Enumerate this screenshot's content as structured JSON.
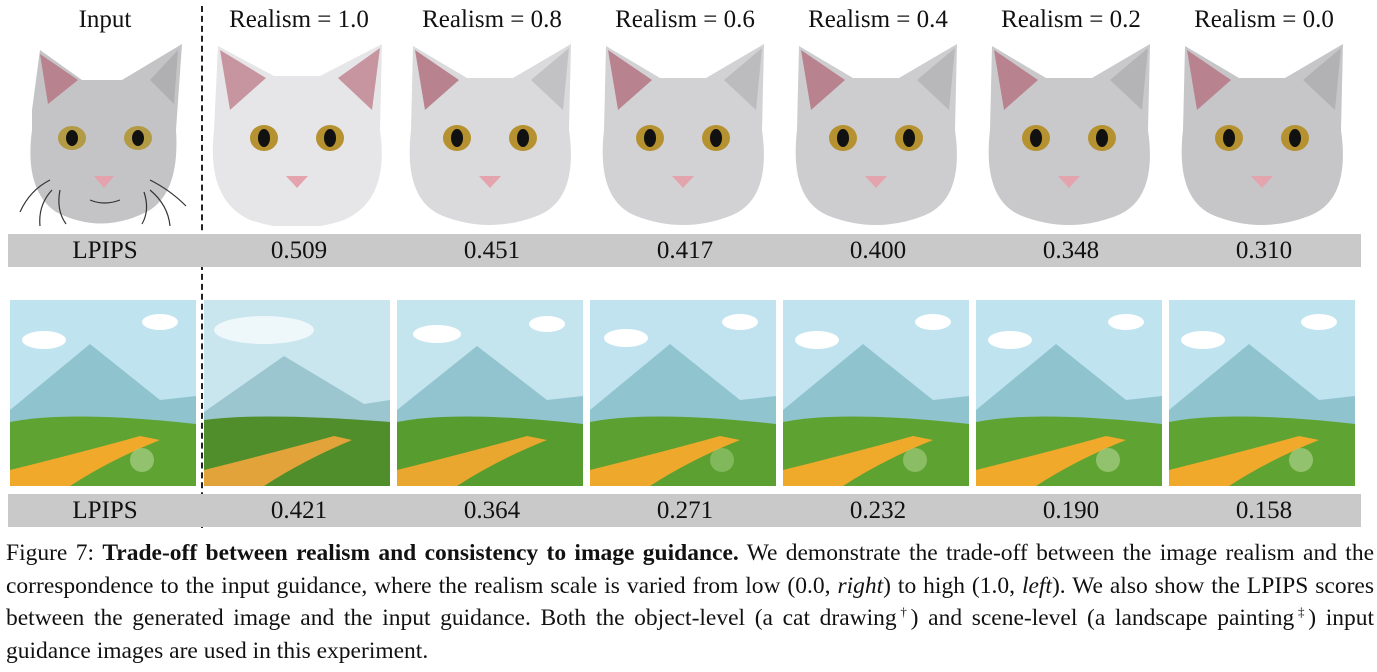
{
  "columns": [
    "Input",
    "Realism = 1.0",
    "Realism = 0.8",
    "Realism = 0.6",
    "Realism = 0.4",
    "Realism = 0.2",
    "Realism = 0.0"
  ],
  "rows": [
    {
      "metric": "LPIPS",
      "values": [
        "0.509",
        "0.451",
        "0.417",
        "0.400",
        "0.348",
        "0.310"
      ]
    },
    {
      "metric": "LPIPS",
      "values": [
        "0.421",
        "0.364",
        "0.271",
        "0.232",
        "0.190",
        "0.158"
      ]
    }
  ],
  "caption": {
    "figure_label": "Figure 7:",
    "title": "Trade-off between realism and consistency to image guidance.",
    "t1": "We demonstrate the trade-off between the image realism and the correspondence to the input guidance, where the realism scale is varied from low (0.0, ",
    "right": "right",
    "t2": ") to high (1.0, ",
    "left": "left",
    "t3": "). We also show the LPIPS scores between the generated image and the input guidance. Both the object-level (a cat drawing",
    "dagger": "†",
    "t4": ") and scene-level (a landscape painting",
    "ddagger": "‡",
    "t5": ") input guidance images are used in this experiment."
  },
  "colors": {
    "bar": "#c9c9c9",
    "cat_fur": "#cfcfd1",
    "ear_pink": "#b9828f",
    "eye": "#b99a3e",
    "sky": "#bfe3ef",
    "mountain": "#8fc4cf",
    "grass": "#5fa332",
    "path": "#f0a92b"
  }
}
